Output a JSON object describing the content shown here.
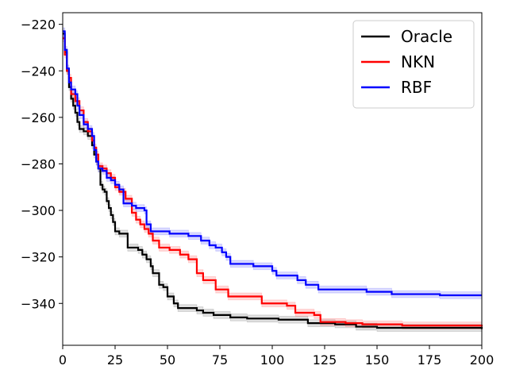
{
  "chart_data": {
    "type": "line",
    "title": "",
    "xlabel": "",
    "ylabel": "",
    "xlim": [
      0,
      200
    ],
    "ylim": [
      -358,
      -215
    ],
    "x_ticks": [
      0,
      25,
      50,
      75,
      100,
      125,
      150,
      175,
      200
    ],
    "x_tick_labels": [
      "0",
      "25",
      "50",
      "75",
      "100",
      "125",
      "150",
      "175",
      "200"
    ],
    "y_ticks": [
      -220,
      -240,
      -260,
      -280,
      -300,
      -320,
      -340
    ],
    "y_tick_labels": [
      "−220",
      "−240",
      "−260",
      "−280",
      "−300",
      "−320",
      "−340"
    ],
    "grid": false,
    "legend": {
      "position": "top-right"
    },
    "series": [
      {
        "name": "Oracle",
        "color": "#000000",
        "band_color": "#808080",
        "band": 1.5,
        "points": [
          [
            0,
            -224
          ],
          [
            1,
            -232
          ],
          [
            2,
            -240
          ],
          [
            3,
            -247
          ],
          [
            4,
            -252
          ],
          [
            5,
            -255
          ],
          [
            6,
            -258
          ],
          [
            7,
            -262
          ],
          [
            8,
            -265
          ],
          [
            10,
            -266
          ],
          [
            12,
            -268
          ],
          [
            14,
            -272
          ],
          [
            15,
            -276
          ],
          [
            16,
            -279
          ],
          [
            17,
            -282
          ],
          [
            18,
            -289
          ],
          [
            19,
            -291
          ],
          [
            20,
            -292
          ],
          [
            21,
            -296
          ],
          [
            22,
            -299
          ],
          [
            23,
            -302
          ],
          [
            24,
            -305
          ],
          [
            25,
            -309
          ],
          [
            27,
            -310
          ],
          [
            31,
            -316
          ],
          [
            36,
            -317
          ],
          [
            38,
            -319
          ],
          [
            40,
            -321
          ],
          [
            42,
            -324
          ],
          [
            43,
            -327
          ],
          [
            46,
            -332
          ],
          [
            48,
            -333
          ],
          [
            50,
            -337
          ],
          [
            53,
            -340
          ],
          [
            55,
            -342
          ],
          [
            64,
            -343
          ],
          [
            67,
            -344
          ],
          [
            72,
            -345
          ],
          [
            80,
            -346
          ],
          [
            88,
            -346.5
          ],
          [
            103,
            -347
          ],
          [
            117,
            -348.5
          ],
          [
            130,
            -349
          ],
          [
            140,
            -350
          ],
          [
            150,
            -350.5
          ],
          [
            200,
            -351
          ]
        ]
      },
      {
        "name": "NKN",
        "color": "#ff0000",
        "band_color": "#ff6666",
        "band": 1.5,
        "points": [
          [
            0,
            -226
          ],
          [
            1,
            -233
          ],
          [
            2,
            -240
          ],
          [
            3,
            -243
          ],
          [
            4,
            -250
          ],
          [
            6,
            -253
          ],
          [
            8,
            -257
          ],
          [
            10,
            -262
          ],
          [
            12,
            -266
          ],
          [
            14,
            -270
          ],
          [
            15,
            -273
          ],
          [
            16,
            -276
          ],
          [
            17,
            -281
          ],
          [
            19,
            -282
          ],
          [
            21,
            -284
          ],
          [
            23,
            -286
          ],
          [
            25,
            -290
          ],
          [
            27,
            -292
          ],
          [
            30,
            -295
          ],
          [
            33,
            -301
          ],
          [
            35,
            -304
          ],
          [
            37,
            -306
          ],
          [
            39,
            -308
          ],
          [
            41,
            -310
          ],
          [
            43,
            -313
          ],
          [
            46,
            -316
          ],
          [
            51,
            -317
          ],
          [
            56,
            -319
          ],
          [
            60,
            -321
          ],
          [
            64,
            -327
          ],
          [
            67,
            -330
          ],
          [
            73,
            -334
          ],
          [
            79,
            -337
          ],
          [
            95,
            -340
          ],
          [
            107,
            -341
          ],
          [
            111,
            -344
          ],
          [
            120,
            -345
          ],
          [
            123,
            -348
          ],
          [
            135,
            -348.5
          ],
          [
            143,
            -349
          ],
          [
            162,
            -349.5
          ],
          [
            200,
            -350
          ]
        ]
      },
      {
        "name": "RBF",
        "color": "#0000ff",
        "band_color": "#6666ff",
        "band": 1.5,
        "points": [
          [
            0,
            -223
          ],
          [
            1,
            -231
          ],
          [
            2,
            -239
          ],
          [
            3,
            -245
          ],
          [
            4,
            -248
          ],
          [
            6,
            -250
          ],
          [
            7,
            -255
          ],
          [
            8,
            -259
          ],
          [
            10,
            -263
          ],
          [
            12,
            -265
          ],
          [
            14,
            -268
          ],
          [
            15,
            -274
          ],
          [
            16,
            -279
          ],
          [
            17,
            -282
          ],
          [
            19,
            -283
          ],
          [
            21,
            -286
          ],
          [
            23,
            -287
          ],
          [
            25,
            -289
          ],
          [
            27,
            -291
          ],
          [
            29,
            -297
          ],
          [
            33,
            -298
          ],
          [
            35,
            -299
          ],
          [
            39,
            -300
          ],
          [
            40,
            -306
          ],
          [
            42,
            -309
          ],
          [
            51,
            -310
          ],
          [
            60,
            -311
          ],
          [
            66,
            -313
          ],
          [
            70,
            -315
          ],
          [
            73,
            -316
          ],
          [
            76,
            -318
          ],
          [
            78,
            -320
          ],
          [
            80,
            -323
          ],
          [
            91,
            -324
          ],
          [
            100,
            -326
          ],
          [
            102,
            -328
          ],
          [
            112,
            -330
          ],
          [
            116,
            -332
          ],
          [
            122,
            -334
          ],
          [
            145,
            -335
          ],
          [
            157,
            -336
          ],
          [
            180,
            -336.5
          ],
          [
            200,
            -336.5
          ]
        ]
      }
    ]
  }
}
